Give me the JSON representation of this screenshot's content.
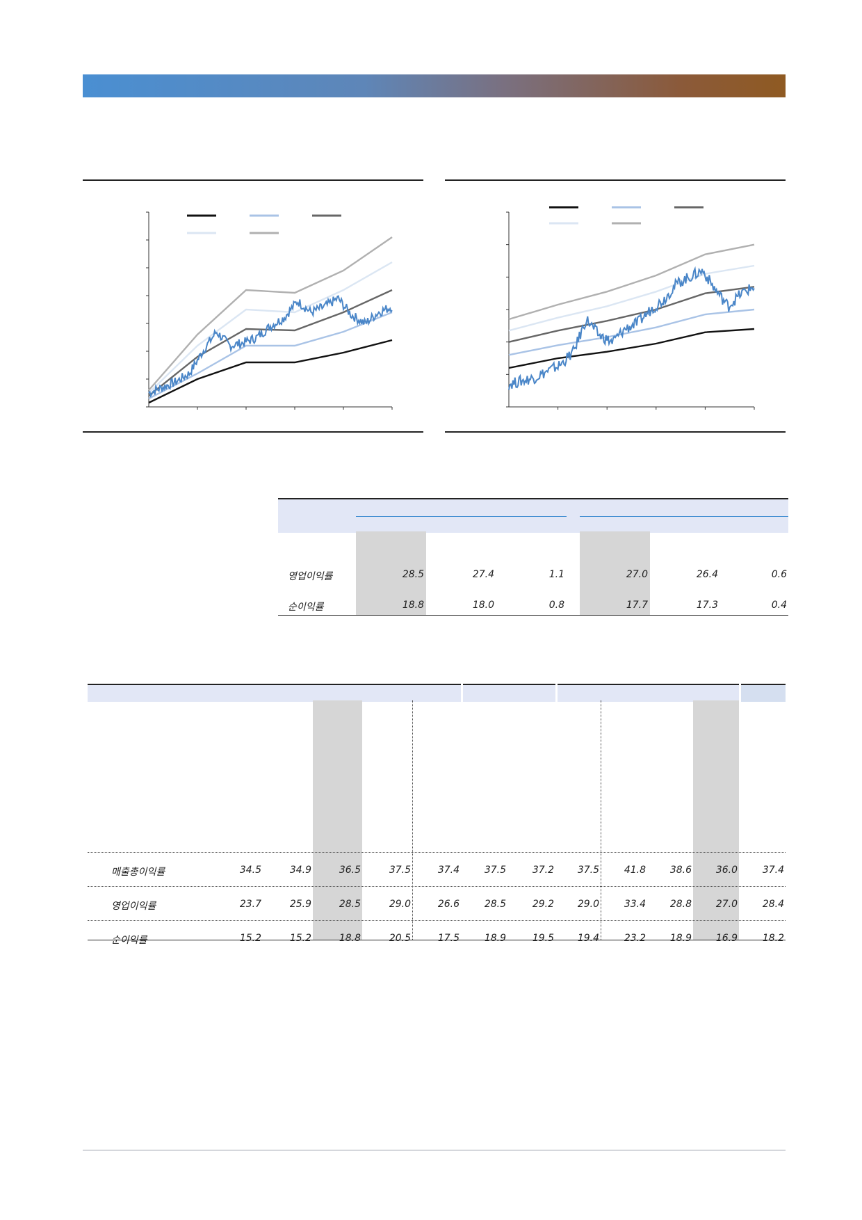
{
  "colors": {
    "banner_start": "#4a8fd2",
    "banner_end": "#8f5a22",
    "table_header": "#e2e7f6",
    "highlight": "#d6d6d6",
    "price_line": "#4a86c8"
  },
  "chart_data": [
    {
      "type": "line",
      "title": "",
      "legend_entries": 5,
      "grid": false,
      "ylim": [
        0,
        7
      ],
      "x_ticks": 5,
      "series": [
        {
          "color": "#111111",
          "values": [
            0.15,
            1.0,
            1.6,
            1.6,
            1.95,
            2.4
          ]
        },
        {
          "color": "#a9c3e6",
          "values": [
            0.3,
            1.2,
            2.2,
            2.2,
            2.7,
            3.4
          ]
        },
        {
          "color": "#666666",
          "values": [
            0.4,
            1.8,
            2.8,
            2.75,
            3.4,
            4.2
          ]
        },
        {
          "color": "#dbe6f3",
          "values": [
            0.5,
            2.2,
            3.5,
            3.4,
            4.2,
            5.2
          ]
        },
        {
          "color": "#b0b0b0",
          "values": [
            0.6,
            2.6,
            4.2,
            4.1,
            4.9,
            6.1
          ]
        }
      ],
      "price": {
        "color": "#4a86c8",
        "values": [
          0.5,
          0.7,
          0.9,
          1.2,
          2.0,
          2.7,
          2.2,
          2.3,
          2.5,
          2.9,
          3.2,
          3.8,
          3.4,
          3.6,
          3.9,
          3.3,
          3.0,
          3.4,
          3.6
        ]
      }
    },
    {
      "type": "line",
      "title": "",
      "legend_entries": 5,
      "grid": false,
      "ylim": [
        0,
        6
      ],
      "x_ticks": 5,
      "series": [
        {
          "color": "#111111",
          "values": [
            1.2,
            1.5,
            1.7,
            1.95,
            2.3,
            2.4
          ]
        },
        {
          "color": "#a9c3e6",
          "values": [
            1.6,
            1.9,
            2.15,
            2.45,
            2.85,
            3.0
          ]
        },
        {
          "color": "#666666",
          "values": [
            2.0,
            2.35,
            2.65,
            3.0,
            3.5,
            3.7
          ]
        },
        {
          "color": "#dbe6f3",
          "values": [
            2.35,
            2.75,
            3.1,
            3.55,
            4.1,
            4.35
          ]
        },
        {
          "color": "#b0b0b0",
          "values": [
            2.7,
            3.15,
            3.55,
            4.05,
            4.7,
            5.0
          ]
        }
      ],
      "price": {
        "color": "#4a86c8",
        "values": [
          0.7,
          0.8,
          0.9,
          1.1,
          1.3,
          1.7,
          2.7,
          2.2,
          2.0,
          2.4,
          2.6,
          3.0,
          3.3,
          3.8,
          4.0,
          4.2,
          3.6,
          3.1,
          3.5,
          3.7
        ]
      }
    }
  ],
  "table1": {
    "rows": [
      {
        "label": "영업이익률",
        "values": [
          "28.5",
          "27.4",
          "1.1",
          "27.0",
          "26.4",
          "0.6"
        ]
      },
      {
        "label": "순이익률",
        "values": [
          "18.8",
          "18.0",
          "0.8",
          "17.7",
          "17.3",
          "0.4"
        ]
      }
    ]
  },
  "table2": {
    "rows": [
      {
        "label": "매출총이익률",
        "values": [
          "34.5",
          "34.9",
          "36.5",
          "37.5",
          "37.4",
          "37.5",
          "37.2",
          "37.5",
          "41.8",
          "38.6",
          "36.0",
          "37.4"
        ]
      },
      {
        "label": "영업이익률",
        "values": [
          "23.7",
          "25.9",
          "28.5",
          "29.0",
          "26.6",
          "28.5",
          "29.2",
          "29.0",
          "33.4",
          "28.8",
          "27.0",
          "28.4"
        ]
      },
      {
        "label": "순이익률",
        "values": [
          "15.2",
          "15.2",
          "18.8",
          "20.5",
          "17.5",
          "18.9",
          "19.5",
          "19.4",
          "23.2",
          "18.9",
          "16.9",
          "18.2"
        ]
      }
    ]
  }
}
